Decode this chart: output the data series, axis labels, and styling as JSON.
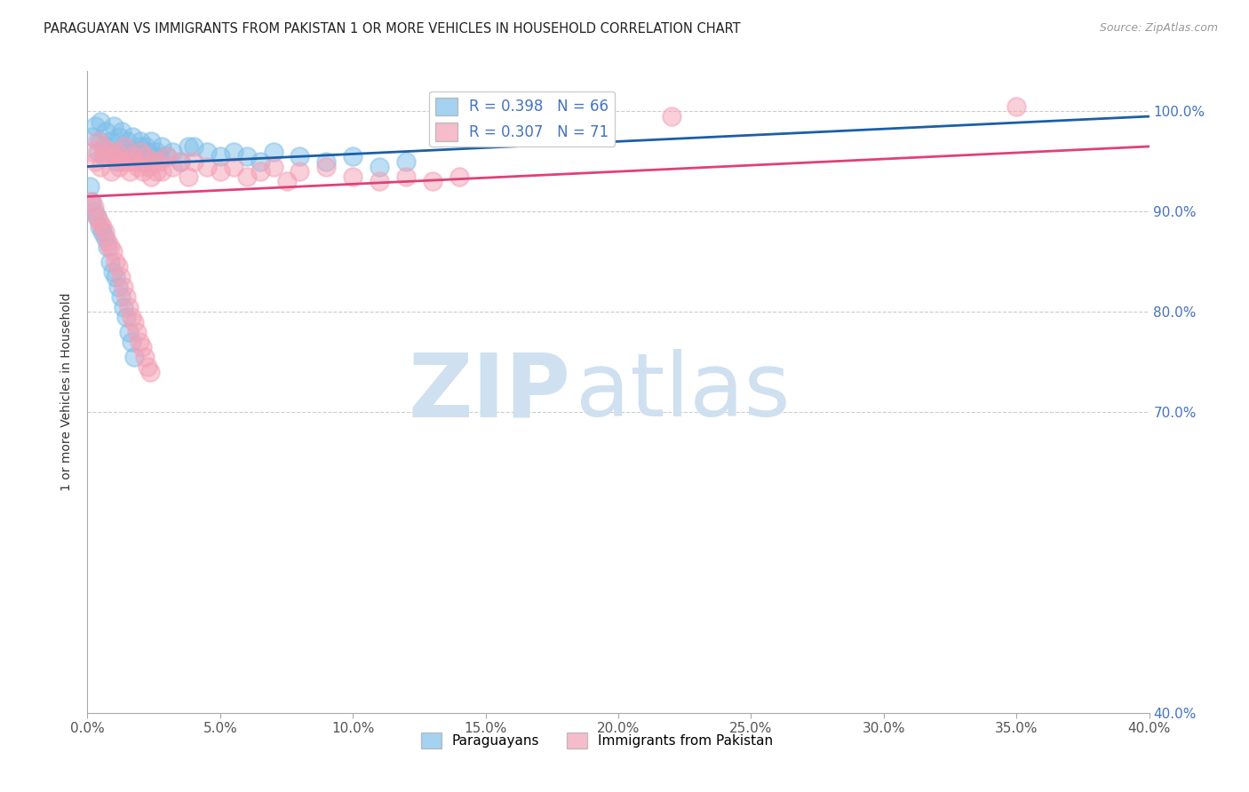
{
  "title": "PARAGUAYAN VS IMMIGRANTS FROM PAKISTAN 1 OR MORE VEHICLES IN HOUSEHOLD CORRELATION CHART",
  "source": "Source: ZipAtlas.com",
  "ylabel": "1 or more Vehicles in Household",
  "x_tick_labels": [
    "0.0%",
    "5.0%",
    "10.0%",
    "15.0%",
    "20.0%",
    "25.0%",
    "30.0%",
    "35.0%",
    "40.0%"
  ],
  "x_tick_vals": [
    0.0,
    5.0,
    10.0,
    15.0,
    20.0,
    25.0,
    30.0,
    35.0,
    40.0
  ],
  "y_tick_labels": [
    "100.0%",
    "90.0%",
    "80.0%",
    "70.0%",
    "40.0%"
  ],
  "y_tick_vals": [
    100.0,
    90.0,
    80.0,
    70.0,
    40.0
  ],
  "xlim": [
    0.0,
    40.0
  ],
  "ylim": [
    40.0,
    104.0
  ],
  "blue_color": "#7fbfea",
  "pink_color": "#f4a0b5",
  "blue_line_color": "#1a5fa8",
  "pink_line_color": "#e0407a",
  "watermark_zip": "ZIP",
  "watermark_atlas": "atlas",
  "watermark_color_zip": "#c8dff0",
  "watermark_color_atlas": "#c8dff0",
  "blue_scatter_x": [
    0.2,
    0.3,
    0.4,
    0.5,
    0.5,
    0.6,
    0.7,
    0.8,
    0.9,
    1.0,
    1.0,
    1.1,
    1.2,
    1.2,
    1.3,
    1.4,
    1.5,
    1.5,
    1.6,
    1.7,
    1.8,
    1.9,
    2.0,
    2.0,
    2.1,
    2.2,
    2.3,
    2.4,
    2.5,
    2.6,
    2.7,
    2.8,
    3.0,
    3.2,
    3.5,
    3.8,
    4.0,
    4.5,
    5.0,
    5.5,
    6.0,
    6.5,
    7.0,
    8.0,
    9.0,
    10.0,
    11.0,
    12.0,
    0.1,
    0.15,
    0.25,
    0.35,
    0.45,
    0.55,
    0.65,
    0.75,
    0.85,
    0.95,
    1.05,
    1.15,
    1.25,
    1.35,
    1.45,
    1.55,
    1.65,
    1.75
  ],
  "blue_scatter_y": [
    97.5,
    98.5,
    96.0,
    99.0,
    97.0,
    95.5,
    98.0,
    96.5,
    97.0,
    96.0,
    98.5,
    95.0,
    97.5,
    96.0,
    98.0,
    96.5,
    95.5,
    97.0,
    96.0,
    97.5,
    96.0,
    95.5,
    97.0,
    96.5,
    95.0,
    96.5,
    96.0,
    97.0,
    95.5,
    96.0,
    95.5,
    96.5,
    95.5,
    96.0,
    95.0,
    96.5,
    96.5,
    96.0,
    95.5,
    96.0,
    95.5,
    95.0,
    96.0,
    95.5,
    95.0,
    95.5,
    94.5,
    95.0,
    92.5,
    91.0,
    90.0,
    89.5,
    88.5,
    88.0,
    87.5,
    86.5,
    85.0,
    84.0,
    83.5,
    82.5,
    81.5,
    80.5,
    79.5,
    78.0,
    77.0,
    75.5
  ],
  "pink_scatter_x": [
    0.2,
    0.3,
    0.4,
    0.5,
    0.6,
    0.7,
    0.8,
    0.9,
    1.0,
    1.1,
    1.2,
    1.3,
    1.4,
    1.5,
    1.6,
    1.7,
    1.8,
    1.9,
    2.0,
    2.1,
    2.2,
    2.3,
    2.4,
    2.5,
    2.6,
    2.7,
    2.8,
    3.0,
    3.2,
    3.5,
    3.8,
    4.0,
    4.5,
    5.0,
    5.5,
    6.0,
    6.5,
    7.0,
    7.5,
    8.0,
    9.0,
    10.0,
    11.0,
    12.0,
    13.0,
    14.0,
    0.15,
    0.25,
    0.35,
    0.45,
    0.55,
    0.65,
    0.75,
    0.85,
    0.95,
    1.05,
    1.15,
    1.25,
    1.35,
    1.45,
    1.55,
    1.65,
    1.75,
    1.85,
    1.95,
    2.05,
    2.15,
    2.25,
    2.35,
    22.0,
    35.0
  ],
  "pink_scatter_y": [
    96.0,
    95.0,
    97.0,
    94.5,
    96.5,
    95.5,
    96.0,
    94.0,
    95.5,
    96.0,
    94.5,
    95.0,
    96.5,
    95.0,
    94.0,
    95.5,
    95.0,
    94.5,
    96.0,
    94.0,
    95.5,
    94.5,
    93.5,
    95.0,
    94.0,
    95.0,
    94.0,
    95.5,
    94.5,
    95.0,
    93.5,
    95.0,
    94.5,
    94.0,
    94.5,
    93.5,
    94.0,
    94.5,
    93.0,
    94.0,
    94.5,
    93.5,
    93.0,
    93.5,
    93.0,
    93.5,
    91.0,
    90.5,
    89.5,
    89.0,
    88.5,
    88.0,
    87.0,
    86.5,
    86.0,
    85.0,
    84.5,
    83.5,
    82.5,
    81.5,
    80.5,
    79.5,
    79.0,
    78.0,
    77.0,
    76.5,
    75.5,
    74.5,
    74.0,
    99.5,
    100.5
  ],
  "blue_trend_x": [
    0.0,
    40.0
  ],
  "blue_trend_y": [
    94.5,
    99.5
  ],
  "pink_trend_x": [
    0.0,
    40.0
  ],
  "pink_trend_y": [
    91.5,
    96.5
  ]
}
